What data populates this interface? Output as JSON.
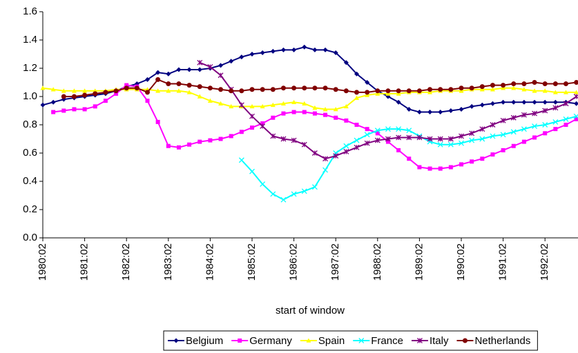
{
  "chart_data": {
    "type": "line",
    "x_label": "start of window",
    "categories": [
      "1980:02",
      null,
      null,
      null,
      "1981:02",
      null,
      null,
      null,
      "1982:02",
      null,
      null,
      null,
      "1983:02",
      null,
      null,
      null,
      "1984:02",
      null,
      null,
      null,
      "1985:02",
      null,
      null,
      null,
      "1986:02",
      null,
      null,
      null,
      "1987:02",
      null,
      null,
      null,
      "1988:02",
      null,
      null,
      null,
      "1989:02",
      null,
      null,
      null,
      "1990:02",
      null,
      null,
      null,
      "1991:02",
      null,
      null,
      null,
      "1992:02",
      null,
      null,
      null
    ],
    "ylim": [
      0,
      1.6
    ],
    "yticks": [
      {
        "value": 0,
        "label": "0.0"
      },
      0.2,
      0.4,
      0.6,
      0.8,
      {
        "value": 1,
        "label": "1.0"
      },
      1.2,
      1.4,
      1.6
    ],
    "grid": false,
    "legend": "bottom",
    "series": [
      {
        "name": "Belgium",
        "color": "#000080",
        "marker": "diamond",
        "values": [
          0.94,
          0.96,
          0.98,
          0.99,
          1.0,
          1.01,
          1.02,
          1.04,
          1.07,
          1.09,
          1.12,
          1.17,
          1.16,
          1.19,
          1.19,
          1.19,
          1.2,
          1.22,
          1.25,
          1.28,
          1.3,
          1.31,
          1.32,
          1.33,
          1.33,
          1.35,
          1.33,
          1.33,
          1.31,
          1.24,
          1.16,
          1.1,
          1.04,
          1.0,
          0.96,
          0.91,
          0.89,
          0.89,
          0.89,
          0.9,
          0.91,
          0.93,
          0.94,
          0.95,
          0.96,
          0.96,
          0.96,
          0.96,
          0.96,
          0.96,
          0.96,
          0.95
        ]
      },
      {
        "name": "Germany",
        "color": "#ff00ff",
        "marker": "square",
        "values": [
          null,
          0.89,
          0.9,
          0.91,
          0.91,
          0.93,
          0.97,
          1.02,
          1.08,
          1.07,
          0.97,
          0.82,
          0.65,
          0.64,
          0.66,
          0.68,
          0.69,
          0.7,
          0.72,
          0.75,
          0.78,
          0.81,
          0.85,
          0.88,
          0.89,
          0.89,
          0.88,
          0.87,
          0.85,
          0.83,
          0.8,
          0.77,
          0.74,
          0.68,
          0.62,
          0.56,
          0.5,
          0.49,
          0.49,
          0.5,
          0.52,
          0.54,
          0.56,
          0.59,
          0.62,
          0.65,
          0.68,
          0.71,
          0.74,
          0.77,
          0.8,
          0.84
        ]
      },
      {
        "name": "Spain",
        "color": "#ffff00",
        "marker": "triangle",
        "values": [
          1.06,
          1.05,
          1.04,
          1.04,
          1.04,
          1.04,
          1.04,
          1.05,
          1.05,
          1.05,
          1.05,
          1.04,
          1.04,
          1.04,
          1.03,
          1.0,
          0.97,
          0.95,
          0.93,
          0.93,
          0.93,
          0.93,
          0.94,
          0.95,
          0.96,
          0.95,
          0.92,
          0.91,
          0.91,
          0.93,
          0.99,
          1.01,
          1.02,
          1.02,
          1.02,
          1.03,
          1.03,
          1.03,
          1.04,
          1.04,
          1.04,
          1.05,
          1.05,
          1.05,
          1.06,
          1.06,
          1.05,
          1.04,
          1.04,
          1.03,
          1.03,
          1.03
        ]
      },
      {
        "name": "France",
        "color": "#00ffff",
        "marker": "x",
        "values": [
          null,
          null,
          null,
          null,
          null,
          null,
          null,
          null,
          null,
          null,
          null,
          null,
          null,
          null,
          null,
          null,
          null,
          null,
          null,
          0.55,
          0.47,
          0.38,
          0.31,
          0.27,
          0.31,
          0.33,
          0.36,
          0.48,
          0.6,
          0.65,
          0.69,
          0.73,
          0.76,
          0.77,
          0.77,
          0.76,
          0.72,
          0.68,
          0.66,
          0.66,
          0.67,
          0.69,
          0.7,
          0.72,
          0.73,
          0.75,
          0.77,
          0.79,
          0.8,
          0.82,
          0.84,
          0.86
        ]
      },
      {
        "name": "Italy",
        "color": "#800080",
        "marker": "star",
        "values": [
          null,
          null,
          null,
          null,
          null,
          null,
          null,
          null,
          null,
          null,
          null,
          null,
          null,
          null,
          null,
          1.24,
          1.21,
          1.15,
          1.05,
          0.94,
          0.86,
          0.79,
          0.72,
          0.7,
          0.69,
          0.66,
          0.6,
          0.56,
          0.58,
          0.61,
          0.64,
          0.67,
          0.69,
          0.7,
          0.71,
          0.71,
          0.71,
          0.7,
          0.7,
          0.7,
          0.72,
          0.74,
          0.77,
          0.8,
          0.83,
          0.85,
          0.87,
          0.88,
          0.9,
          0.92,
          0.95,
          1.0
        ]
      },
      {
        "name": "Netherlands",
        "color": "#800000",
        "marker": "circle",
        "values": [
          null,
          null,
          1.0,
          1.0,
          1.01,
          1.02,
          1.03,
          1.04,
          1.06,
          1.06,
          1.03,
          1.12,
          1.09,
          1.09,
          1.08,
          1.07,
          1.06,
          1.05,
          1.04,
          1.04,
          1.05,
          1.05,
          1.05,
          1.06,
          1.06,
          1.06,
          1.06,
          1.06,
          1.05,
          1.04,
          1.03,
          1.03,
          1.04,
          1.04,
          1.04,
          1.04,
          1.04,
          1.05,
          1.05,
          1.05,
          1.06,
          1.06,
          1.07,
          1.08,
          1.08,
          1.09,
          1.09,
          1.1,
          1.09,
          1.09,
          1.09,
          1.1
        ]
      }
    ]
  }
}
